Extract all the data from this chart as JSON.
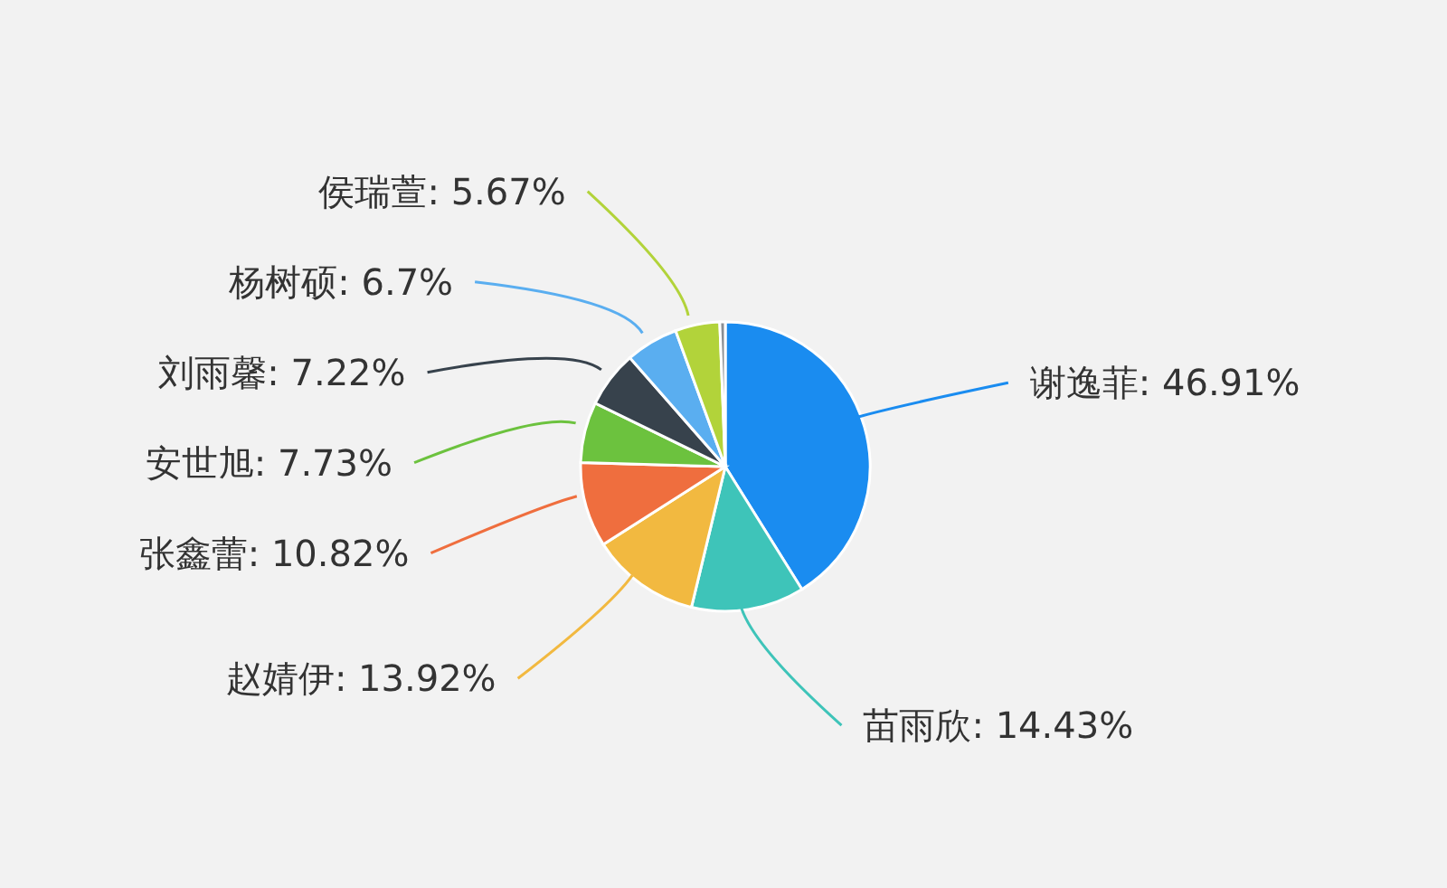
{
  "chart_data": {
    "type": "pie",
    "categories": [
      "谢逸菲",
      "苗雨欣",
      "赵婧伊",
      "张鑫蕾",
      "安世旭",
      "刘雨馨",
      "杨树硕",
      "侯瑞萱",
      null
    ],
    "values": [
      46.91,
      14.43,
      13.92,
      10.82,
      7.73,
      7.22,
      6.7,
      5.67,
      0.7
    ],
    "colors": [
      "#1a8cf0",
      "#3ec4b9",
      "#f2b940",
      "#ef6e3e",
      "#6cc23e",
      "#37424c",
      "#5aaef0",
      "#b2d33a",
      "#8a8f94"
    ],
    "value_labels": [
      "46.91%",
      "14.43%",
      "13.92%",
      "10.82%",
      "7.73%",
      "7.22%",
      "6.7%",
      "5.67%",
      null
    ]
  }
}
